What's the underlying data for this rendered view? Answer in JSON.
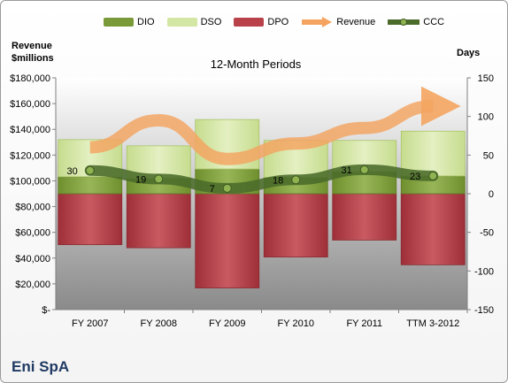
{
  "company": "Eni SpA",
  "chart_data": {
    "type": "bar",
    "title": "12-Month Periods",
    "ylabel_left": "Revenue\n$millions",
    "ylabel_right": "Days",
    "categories": [
      "FY 2007",
      "FY 2008",
      "FY 2009",
      "FY 2010",
      "FY 2011",
      "TTM 3-2012"
    ],
    "left_axis": {
      "min": 0,
      "max": 180000,
      "step": 20000,
      "tick_labels": [
        "$-",
        "$20,000",
        "$40,000",
        "$60,000",
        "$80,000",
        "$100,000",
        "$120,000",
        "$140,000",
        "$160,000",
        "$180,000"
      ]
    },
    "right_axis": {
      "min": -150,
      "max": 150,
      "step": 50,
      "tick_labels": [
        "-150",
        "-100",
        "-50",
        "0",
        "50",
        "100",
        "150"
      ]
    },
    "legend_position": "top",
    "series": [
      {
        "name": "DIO",
        "axis": "right",
        "kind": "stacked-bar",
        "color": "#7a9a3a",
        "values": [
          22,
          20,
          32,
          21,
          29,
          23
        ]
      },
      {
        "name": "DSO",
        "axis": "right",
        "kind": "stacked-bar",
        "color": "#d4e6a3",
        "values": [
          48,
          42,
          64,
          48,
          40,
          58
        ]
      },
      {
        "name": "DPO",
        "axis": "right",
        "kind": "negative-bar",
        "color": "#b8414a",
        "values": [
          -66,
          -70,
          -122,
          -82,
          -60,
          -92
        ]
      },
      {
        "name": "Revenue",
        "axis": "left",
        "kind": "line",
        "color": "#f4a460",
        "values": [
          126000,
          147000,
          117000,
          129000,
          141000,
          158000
        ]
      },
      {
        "name": "CCC",
        "axis": "right",
        "kind": "line",
        "color": "#4a6b2a",
        "values": [
          30,
          19,
          7,
          18,
          31,
          23
        ]
      }
    ],
    "data_labels": [
      "30",
      "19",
      "7",
      "18",
      "31",
      "23"
    ],
    "grid": false
  }
}
